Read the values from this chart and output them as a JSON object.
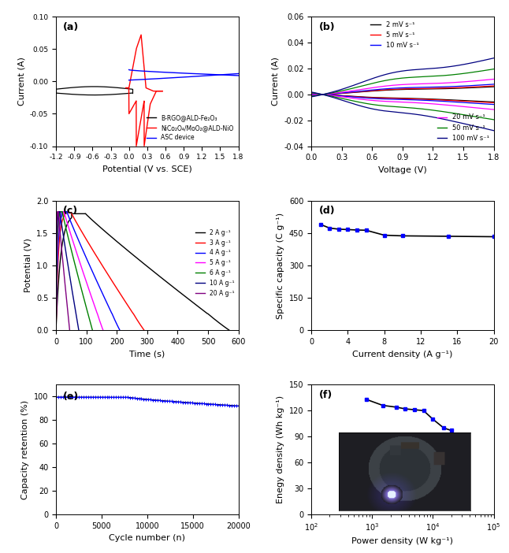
{
  "panel_a": {
    "title": "(a)",
    "xlabel": "Potential (V vs. SCE)",
    "ylabel": "Current (A)",
    "xlim": [
      -1.2,
      1.8
    ],
    "ylim": [
      -0.1,
      0.1
    ],
    "xticks": [
      -1.2,
      -0.9,
      -0.6,
      -0.3,
      0.0,
      0.3,
      0.6,
      0.9,
      1.2,
      1.5,
      1.8
    ],
    "yticks": [
      -0.1,
      -0.05,
      0.0,
      0.05,
      0.1
    ],
    "legend": [
      "B-RGO@ALD-Fe₂O₃",
      "NiCo₂O₄/MoO₂@ALD-NiO",
      "ASC device"
    ],
    "colors": [
      "black",
      "red",
      "blue"
    ]
  },
  "panel_b": {
    "title": "(b)",
    "xlabel": "Voltage (V)",
    "ylabel": "Current (A)",
    "xlim": [
      0.0,
      1.8
    ],
    "ylim": [
      -0.04,
      0.06
    ],
    "xticks": [
      0.0,
      0.3,
      0.6,
      0.9,
      1.2,
      1.5,
      1.8
    ],
    "yticks": [
      -0.04,
      -0.02,
      0.0,
      0.02,
      0.04,
      0.06
    ],
    "legend_top": [
      "2 mV s⁻¹",
      "5 mV s⁻¹",
      "10 mV s⁻¹"
    ],
    "legend_bottom": [
      "20 mV s⁻¹",
      "50 mV s⁻¹",
      "100 mV s⁻¹"
    ],
    "colors": [
      "black",
      "red",
      "blue",
      "magenta",
      "green",
      "navy"
    ]
  },
  "panel_c": {
    "title": "(c)",
    "xlabel": "Time (s)",
    "ylabel": "Potential (V)",
    "xlim": [
      0,
      600
    ],
    "ylim": [
      0.0,
      2.0
    ],
    "xticks": [
      0,
      100,
      200,
      300,
      400,
      500,
      600
    ],
    "yticks": [
      0.0,
      0.5,
      1.0,
      1.5,
      2.0
    ],
    "legend": [
      "2 A g⁻¹",
      "3 A g⁻¹",
      "4 A g⁻¹",
      "5 A g⁻¹",
      "6 A g⁻¹",
      "10 A g⁻¹",
      "20 A g⁻¹"
    ],
    "colors": [
      "black",
      "red",
      "blue",
      "magenta",
      "green",
      "navy",
      "purple"
    ],
    "total_times": [
      570,
      290,
      210,
      155,
      120,
      75,
      45
    ],
    "max_voltages": [
      1.8,
      1.82,
      1.83,
      1.83,
      1.83,
      1.83,
      1.83
    ]
  },
  "panel_d": {
    "title": "(d)",
    "xlabel": "Current density (A g⁻¹)",
    "ylabel": "Specific capacity (C g⁻¹)",
    "xlim": [
      0,
      20
    ],
    "ylim": [
      0,
      600
    ],
    "xticks": [
      0,
      4,
      8,
      12,
      16,
      20
    ],
    "yticks": [
      0,
      150,
      300,
      450,
      600
    ],
    "x_data": [
      1,
      2,
      3,
      4,
      5,
      6,
      8,
      10,
      15,
      20
    ],
    "y_data": [
      490,
      473,
      468,
      466,
      464,
      463,
      440,
      437,
      435,
      433
    ],
    "color": "blue",
    "line_color": "black"
  },
  "panel_e": {
    "title": "(e)",
    "xlabel": "Cycle number (n)",
    "ylabel": "Capacity retention (%)",
    "xlim": [
      0,
      20000
    ],
    "ylim": [
      0,
      110
    ],
    "xticks": [
      0,
      5000,
      10000,
      15000,
      20000
    ],
    "yticks": [
      0,
      20,
      40,
      60,
      80,
      100
    ],
    "color": "blue",
    "line_color": "black"
  },
  "panel_f": {
    "title": "(f)",
    "xlabel": "Power density (W kg⁻¹)",
    "ylabel": "Enegy density (Wh kg⁻¹)",
    "xlim_log": [
      100,
      100000
    ],
    "ylim": [
      0,
      150
    ],
    "yticks": [
      0,
      30,
      60,
      90,
      120,
      150
    ],
    "x_data": [
      800,
      1500,
      2500,
      3500,
      5000,
      7000,
      10000,
      15000,
      20000
    ],
    "y_data": [
      133,
      126,
      124,
      122,
      121,
      120,
      110,
      100,
      97
    ],
    "color": "blue",
    "line_color": "black"
  }
}
